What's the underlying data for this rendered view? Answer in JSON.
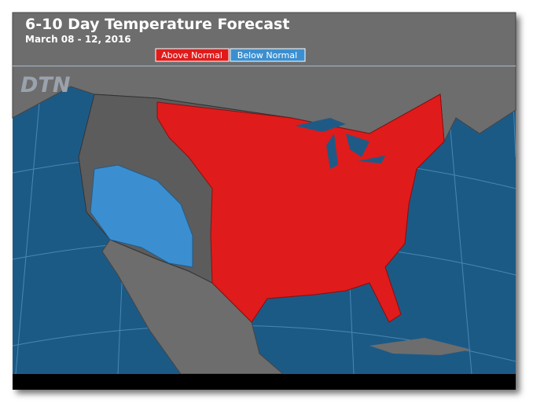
{
  "title": "6-10 Day Temperature Forecast",
  "subtitle": "March 08 - 12, 2016",
  "legend": [
    "Above Normal",
    "Below Normal"
  ],
  "logo": "DTN"
}
